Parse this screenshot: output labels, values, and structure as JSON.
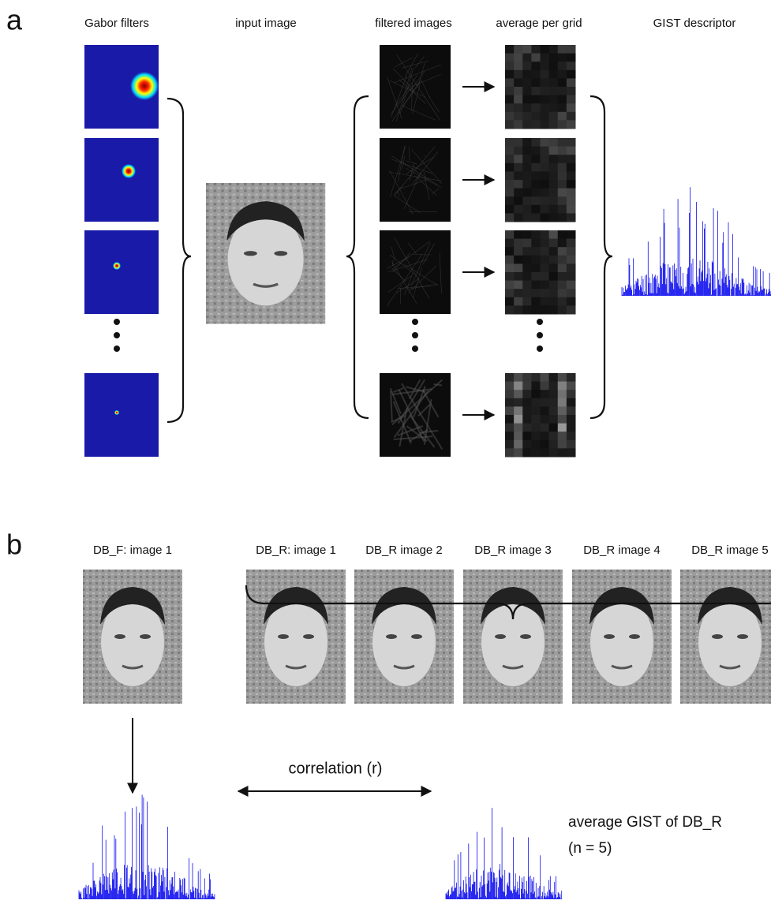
{
  "panel_a": {
    "label": "a",
    "headers": [
      "Gabor filters",
      "input image",
      "filtered images",
      "average per grid",
      "GIST descriptor"
    ]
  },
  "panel_b": {
    "label": "b",
    "db_f_title": "DB_F: image 1",
    "db_r_titles": [
      "DB_R: image 1",
      "DB_R image 2",
      "DB_R image 3",
      "DB_R image 4",
      "DB_R image 5"
    ],
    "correlation_label": "correlation (r)",
    "average_label": [
      "average GIST of DB_R",
      "(n = 5)"
    ]
  }
}
